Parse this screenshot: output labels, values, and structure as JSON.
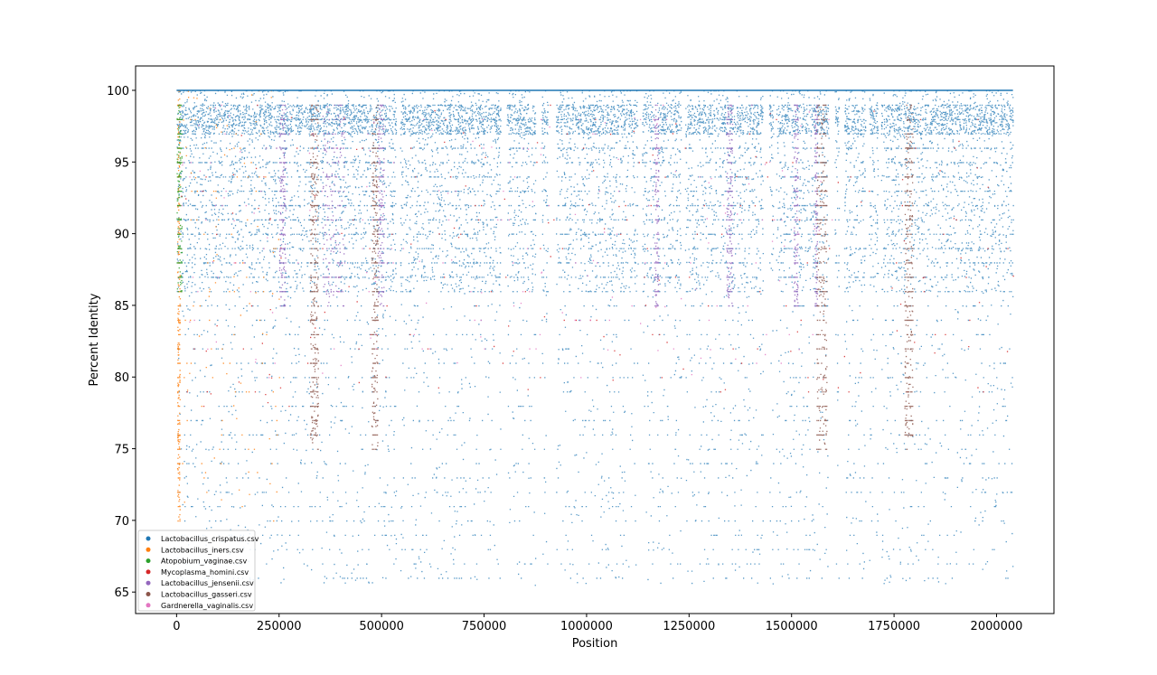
{
  "chart_data": {
    "type": "scatter",
    "xlabel": "Position",
    "ylabel": "Percent Identity",
    "xlim": [
      -100000,
      2140000
    ],
    "ylim": [
      63.5,
      101.7
    ],
    "x_ticks": [
      0,
      250000,
      500000,
      750000,
      1000000,
      1250000,
      1500000,
      1750000,
      2000000
    ],
    "x_tick_labels": [
      "0",
      "250000",
      "500000",
      "750000",
      "1000000",
      "1250000",
      "1500000",
      "1750000",
      "2000000"
    ],
    "y_ticks": [
      65,
      70,
      75,
      80,
      85,
      90,
      95,
      100
    ],
    "y_tick_labels": [
      "65",
      "70",
      "75",
      "80",
      "85",
      "90",
      "95",
      "100"
    ],
    "grid": false,
    "legend_position": "lower-left",
    "series": [
      {
        "name": "Lactobacillus_crispatus.csv",
        "color": "#1f77b4",
        "x_range": [
          0,
          2040000
        ],
        "y_range": [
          65.5,
          100
        ],
        "dense_band": [
          86,
          100
        ],
        "gaps": [
          [
            535000,
            545000
          ],
          [
            790000,
            805000
          ],
          [
            875000,
            890000
          ],
          [
            905000,
            925000
          ],
          [
            1125000,
            1135000
          ],
          [
            1165000,
            1172000
          ],
          [
            1230000,
            1240000
          ],
          [
            1430000,
            1445000
          ],
          [
            1455000,
            1462000
          ],
          [
            1590000,
            1605000
          ],
          [
            1615000,
            1628000
          ],
          [
            1680000,
            1688000
          ],
          [
            1710000,
            1718000
          ]
        ]
      },
      {
        "name": "Lactobacillus_iners.csv",
        "color": "#ff7f0e",
        "x_range": [
          0,
          250000
        ],
        "y_range": [
          70,
          100
        ],
        "concentrated_near": 3000
      },
      {
        "name": "Atopobium_vaginae.csv",
        "color": "#2ca02c",
        "x_range": [
          0,
          12000
        ],
        "y_range": [
          86,
          99
        ]
      },
      {
        "name": "Mycoplasma_homini.csv",
        "color": "#d62728",
        "x_range": [
          0,
          2040000
        ],
        "y_range": [
          78,
          99
        ]
      },
      {
        "name": "Lactobacillus_jensenii.csv",
        "color": "#9467bd",
        "x_range": [
          250000,
          1560000
        ],
        "y_range": [
          85,
          99
        ],
        "stripes": [
          [
            250000,
            265000
          ],
          [
            355000,
            410000
          ],
          [
            490000,
            505000
          ],
          [
            1165000,
            1175000
          ],
          [
            1340000,
            1355000
          ],
          [
            1505000,
            1515000
          ],
          [
            1555000,
            1562000
          ]
        ]
      },
      {
        "name": "Lactobacillus_gasseri.csv",
        "color": "#8c564b",
        "x_range": [
          320000,
          1795000
        ],
        "y_range": [
          75,
          99
        ],
        "stripes": [
          [
            325000,
            345000
          ],
          [
            475000,
            490000
          ],
          [
            1560000,
            1585000
          ],
          [
            1775000,
            1795000
          ]
        ]
      },
      {
        "name": "Gardnerella_vaginalis.csv",
        "color": "#e377c2",
        "x_range": [
          0,
          1600000
        ],
        "y_range": [
          80,
          99
        ]
      }
    ]
  }
}
